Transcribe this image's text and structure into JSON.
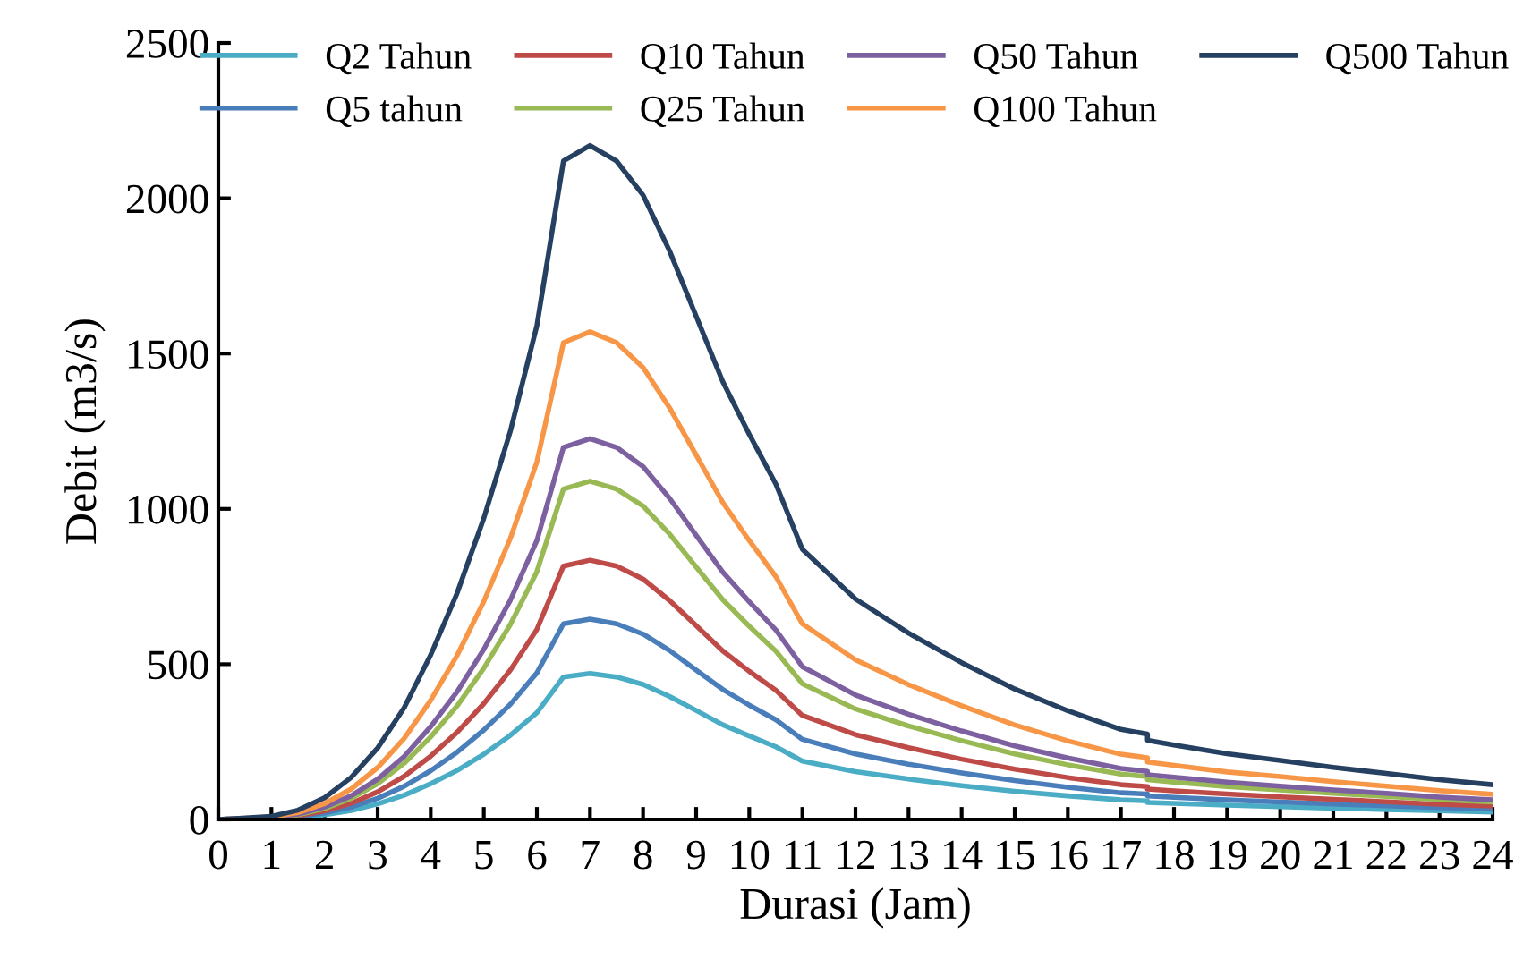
{
  "chart_data": {
    "type": "line",
    "xlabel": "Durasi (Jam)",
    "ylabel": "Debit (m3/s)",
    "x": [
      0,
      1,
      1.5,
      2,
      2.5,
      3,
      3.5,
      4,
      4.5,
      5,
      5.5,
      6,
      6.5,
      7,
      7.5,
      8,
      8.5,
      9,
      9.5,
      10,
      10.5,
      11,
      12,
      13,
      14,
      15,
      16,
      17,
      17.5,
      17.5,
      18,
      19,
      20,
      21,
      22,
      23,
      24
    ],
    "xlim": [
      0,
      24
    ],
    "xticks": [
      0,
      1,
      2,
      3,
      4,
      5,
      6,
      7,
      8,
      9,
      10,
      11,
      12,
      13,
      14,
      15,
      16,
      17,
      18,
      19,
      20,
      21,
      22,
      23,
      24
    ],
    "ylim": [
      0,
      2500
    ],
    "yticks": [
      0,
      500,
      1000,
      1500,
      2000,
      2500
    ],
    "grid": false,
    "legend": "top",
    "marker": "none",
    "line_style": "solid",
    "series": [
      {
        "name": "Q2 Tahun",
        "color": "#4bacc6",
        "values": [
          0,
          2,
          6,
          15,
          29,
          50,
          78,
          115,
          158,
          210,
          271,
          344,
          459,
          470,
          459,
          435,
          396,
          351,
          305,
          269,
          234,
          188,
          154,
          130,
          109,
          91,
          76,
          63,
          60,
          55,
          52,
          46,
          41,
          36,
          32,
          28,
          24
        ]
      },
      {
        "name": "Q5 tahun",
        "color": "#4a7ebb",
        "values": [
          0,
          3,
          9,
          21,
          40,
          68,
          107,
          157,
          217,
          288,
          371,
          472,
          630,
          645,
          630,
          597,
          544,
          481,
          419,
          368,
          321,
          258,
          211,
          178,
          150,
          125,
          104,
          86,
          82,
          76,
          71,
          63,
          56,
          50,
          44,
          38,
          33
        ]
      },
      {
        "name": "Q10 Tahun",
        "color": "#be4b48",
        "values": [
          0,
          4,
          12,
          27,
          52,
          89,
          139,
          204,
          281,
          373,
          481,
          612,
          816,
          835,
          816,
          774,
          705,
          624,
          543,
          477,
          416,
          335,
          273,
          231,
          194,
          162,
          135,
          112,
          106,
          98,
          92,
          82,
          73,
          65,
          57,
          49,
          43
        ]
      },
      {
        "name": "Q25 Tahun",
        "color": "#98b954",
        "values": [
          0,
          5,
          15,
          35,
          68,
          115,
          181,
          266,
          366,
          487,
          628,
          798,
          1064,
          1089,
          1064,
          1009,
          919,
          813,
          708,
          622,
          542,
          437,
          356,
          301,
          254,
          211,
          176,
          146,
          138,
          128,
          120,
          106,
          95,
          84,
          74,
          64,
          56
        ]
      },
      {
        "name": "Q50 Tahun",
        "color": "#7d60a0",
        "values": [
          0,
          6,
          17,
          40,
          76,
          130,
          203,
          299,
          412,
          548,
          706,
          898,
          1198,
          1226,
          1198,
          1136,
          1034,
          915,
          797,
          701,
          610,
          492,
          401,
          339,
          285,
          237,
          198,
          164,
          155,
          144,
          136,
          120,
          107,
          95,
          84,
          72,
          63
        ]
      },
      {
        "name": "Q100 Tahun",
        "color": "#f79646",
        "values": [
          0,
          7,
          22,
          51,
          98,
          167,
          261,
          384,
          529,
          702,
          905,
          1151,
          1535,
          1570,
          1535,
          1455,
          1325,
          1173,
          1021,
          898,
          782,
          630,
          514,
          434,
          366,
          304,
          253,
          210,
          199,
          185,
          174,
          153,
          138,
          122,
          107,
          93,
          81
        ]
      },
      {
        "name": "Q500 Tahun",
        "color": "#254061",
        "values": [
          0,
          10,
          30,
          70,
          135,
          230,
          360,
          530,
          730,
          970,
          1250,
          1590,
          2120,
          2170,
          2120,
          2010,
          1830,
          1620,
          1410,
          1240,
          1080,
          870,
          710,
          600,
          505,
          420,
          350,
          290,
          275,
          255,
          240,
          212,
          190,
          168,
          148,
          128,
          112
        ]
      }
    ]
  }
}
